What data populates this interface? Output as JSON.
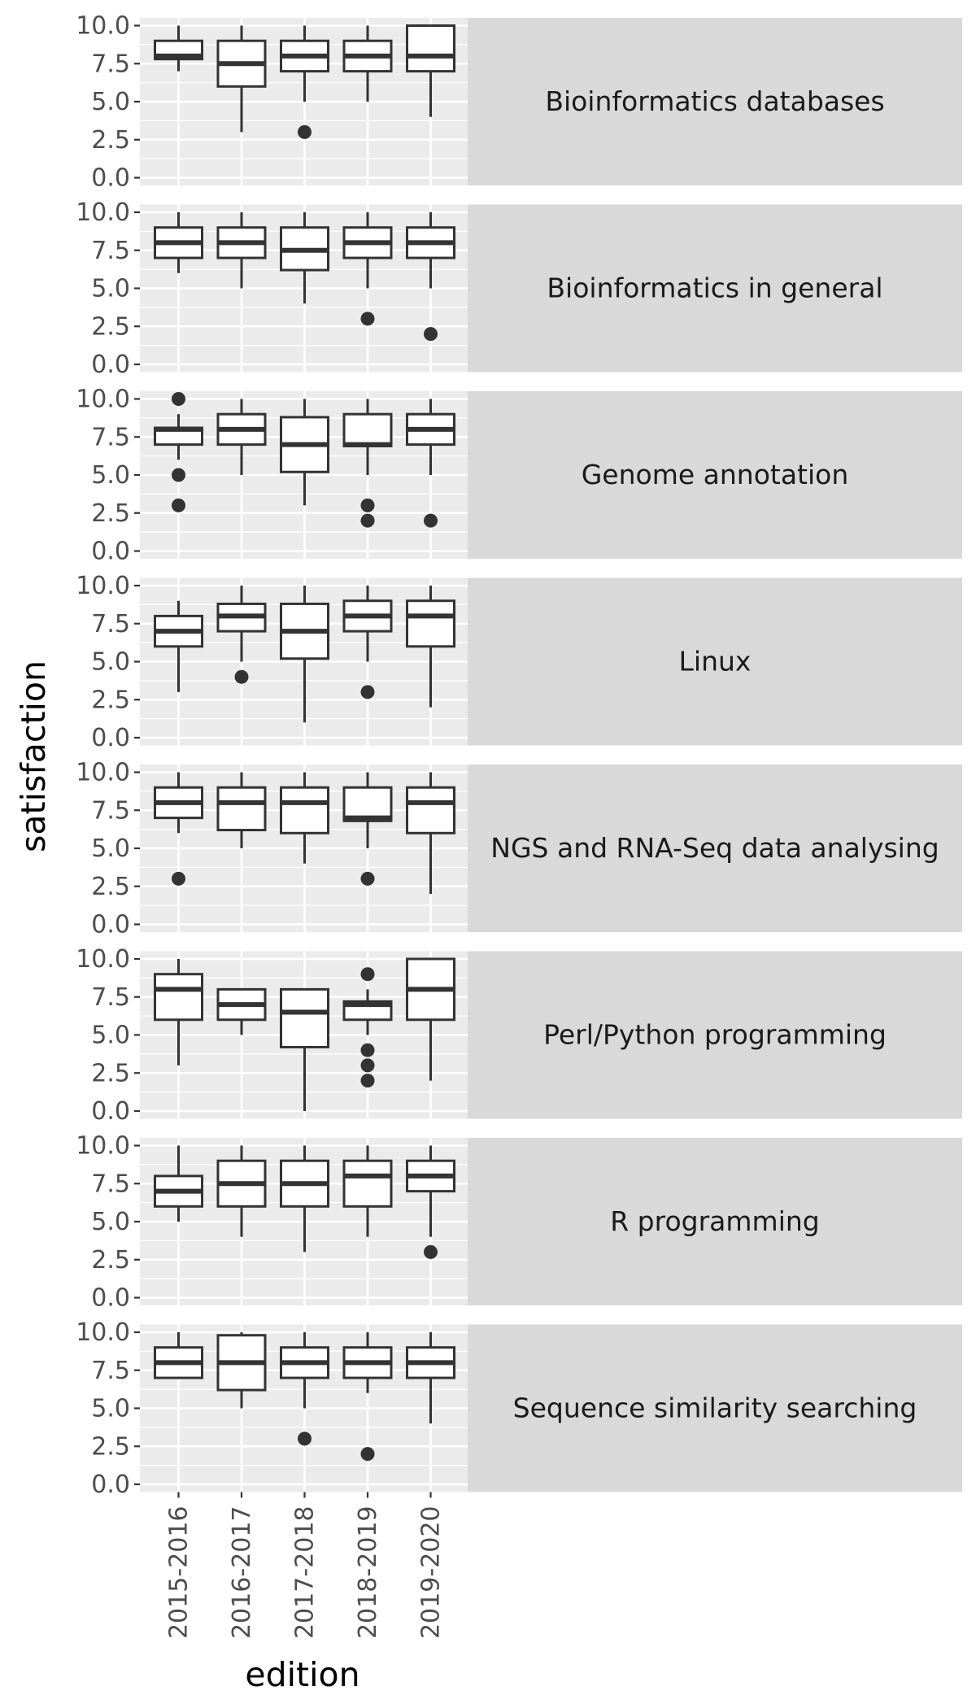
{
  "colors": {
    "panel_bg": "#ebebeb",
    "grid": "#ffffff",
    "strip_bg": "#d9d9d9",
    "box_stroke": "#333333",
    "box_fill": "#ffffff",
    "text": "#4d4d4d"
  },
  "chart_data": {
    "type": "boxplot",
    "xlabel": "edition",
    "ylabel": "satisfaction",
    "ylim": [
      0,
      10
    ],
    "y_ticks": [
      "0.0",
      "2.5",
      "5.0",
      "7.5",
      "10.0"
    ],
    "y_tick_values": [
      0,
      2.5,
      5,
      7.5,
      10
    ],
    "categories": [
      "2015-2016",
      "2016-2017",
      "2017-2018",
      "2018-2019",
      "2019-2020"
    ],
    "grid": true,
    "facets": [
      {
        "label": "Bioinformatics databases",
        "boxes": [
          {
            "min": 7,
            "q1": 7.8,
            "median": 8,
            "q3": 9,
            "max": 10,
            "outliers": []
          },
          {
            "min": 3,
            "q1": 6,
            "median": 7.5,
            "q3": 9,
            "max": 10,
            "outliers": []
          },
          {
            "min": 5,
            "q1": 7,
            "median": 8,
            "q3": 9,
            "max": 10,
            "outliers": [
              3
            ]
          },
          {
            "min": 5,
            "q1": 7,
            "median": 8,
            "q3": 9,
            "max": 10,
            "outliers": []
          },
          {
            "min": 4,
            "q1": 7,
            "median": 8,
            "q3": 10,
            "max": 10,
            "outliers": []
          }
        ]
      },
      {
        "label": "Bioinformatics in general",
        "boxes": [
          {
            "min": 6,
            "q1": 7,
            "median": 8,
            "q3": 9,
            "max": 10,
            "outliers": []
          },
          {
            "min": 5,
            "q1": 7,
            "median": 8,
            "q3": 9,
            "max": 10,
            "outliers": []
          },
          {
            "min": 4,
            "q1": 6.2,
            "median": 7.5,
            "q3": 9,
            "max": 10,
            "outliers": []
          },
          {
            "min": 5,
            "q1": 7,
            "median": 8,
            "q3": 9,
            "max": 10,
            "outliers": [
              3
            ]
          },
          {
            "min": 5,
            "q1": 7,
            "median": 8,
            "q3": 9,
            "max": 10,
            "outliers": [
              2
            ]
          }
        ]
      },
      {
        "label": "Genome annotation",
        "boxes": [
          {
            "min": 6,
            "q1": 7,
            "median": 8,
            "q3": 8.1,
            "max": 9,
            "outliers": [
              10,
              5,
              3
            ]
          },
          {
            "min": 5,
            "q1": 7,
            "median": 8,
            "q3": 9,
            "max": 10,
            "outliers": []
          },
          {
            "min": 3,
            "q1": 5.2,
            "median": 7,
            "q3": 8.8,
            "max": 10,
            "outliers": []
          },
          {
            "min": 5,
            "q1": 6.9,
            "median": 7,
            "q3": 9,
            "max": 10,
            "outliers": [
              3,
              2
            ]
          },
          {
            "min": 5,
            "q1": 7,
            "median": 8,
            "q3": 9,
            "max": 10,
            "outliers": [
              2
            ]
          }
        ]
      },
      {
        "label": "Linux",
        "boxes": [
          {
            "min": 3,
            "q1": 6,
            "median": 7,
            "q3": 8,
            "max": 9,
            "outliers": []
          },
          {
            "min": 5,
            "q1": 7,
            "median": 8,
            "q3": 8.8,
            "max": 10,
            "outliers": [
              4
            ]
          },
          {
            "min": 1,
            "q1": 5.2,
            "median": 7,
            "q3": 8.8,
            "max": 10,
            "outliers": []
          },
          {
            "min": 5,
            "q1": 7,
            "median": 8,
            "q3": 9,
            "max": 10,
            "outliers": [
              3
            ]
          },
          {
            "min": 2,
            "q1": 6,
            "median": 8,
            "q3": 9,
            "max": 10,
            "outliers": []
          }
        ]
      },
      {
        "label": "NGS and RNA-Seq data analysing",
        "boxes": [
          {
            "min": 6,
            "q1": 7,
            "median": 8,
            "q3": 9,
            "max": 10,
            "outliers": [
              3
            ]
          },
          {
            "min": 5,
            "q1": 6.2,
            "median": 8,
            "q3": 9,
            "max": 10,
            "outliers": []
          },
          {
            "min": 4,
            "q1": 6,
            "median": 8,
            "q3": 9,
            "max": 10,
            "outliers": []
          },
          {
            "min": 5,
            "q1": 6.8,
            "median": 7,
            "q3": 9,
            "max": 10,
            "outliers": [
              3
            ]
          },
          {
            "min": 2,
            "q1": 6,
            "median": 8,
            "q3": 9,
            "max": 10,
            "outliers": []
          }
        ]
      },
      {
        "label": "Perl/Python programming",
        "boxes": [
          {
            "min": 3,
            "q1": 6,
            "median": 8,
            "q3": 9,
            "max": 10,
            "outliers": []
          },
          {
            "min": 5,
            "q1": 6,
            "median": 7,
            "q3": 8,
            "max": 8,
            "outliers": []
          },
          {
            "min": 0,
            "q1": 4.2,
            "median": 6.5,
            "q3": 8,
            "max": 8,
            "outliers": []
          },
          {
            "min": 5,
            "q1": 6,
            "median": 7,
            "q3": 7.2,
            "max": 8,
            "outliers": [
              9,
              4,
              3,
              2
            ]
          },
          {
            "min": 2,
            "q1": 6,
            "median": 8,
            "q3": 10,
            "max": 10,
            "outliers": []
          }
        ]
      },
      {
        "label": "R programming",
        "boxes": [
          {
            "min": 5,
            "q1": 6,
            "median": 7,
            "q3": 8,
            "max": 10,
            "outliers": []
          },
          {
            "min": 4,
            "q1": 6,
            "median": 7.5,
            "q3": 9,
            "max": 10,
            "outliers": []
          },
          {
            "min": 3,
            "q1": 6,
            "median": 7.5,
            "q3": 9,
            "max": 10,
            "outliers": []
          },
          {
            "min": 4,
            "q1": 6,
            "median": 8,
            "q3": 9,
            "max": 10,
            "outliers": []
          },
          {
            "min": 4,
            "q1": 7,
            "median": 8,
            "q3": 9,
            "max": 10,
            "outliers": [
              3
            ]
          }
        ]
      },
      {
        "label": "Sequence similarity searching",
        "boxes": [
          {
            "min": 7,
            "q1": 7,
            "median": 8,
            "q3": 9,
            "max": 10,
            "outliers": []
          },
          {
            "min": 5,
            "q1": 6.2,
            "median": 8,
            "q3": 9.8,
            "max": 10,
            "outliers": []
          },
          {
            "min": 5,
            "q1": 7,
            "median": 8,
            "q3": 9,
            "max": 10,
            "outliers": [
              3
            ]
          },
          {
            "min": 6,
            "q1": 7,
            "median": 8,
            "q3": 9,
            "max": 10,
            "outliers": [
              2
            ]
          },
          {
            "min": 4,
            "q1": 7,
            "median": 8,
            "q3": 9,
            "max": 10,
            "outliers": []
          }
        ]
      }
    ]
  }
}
